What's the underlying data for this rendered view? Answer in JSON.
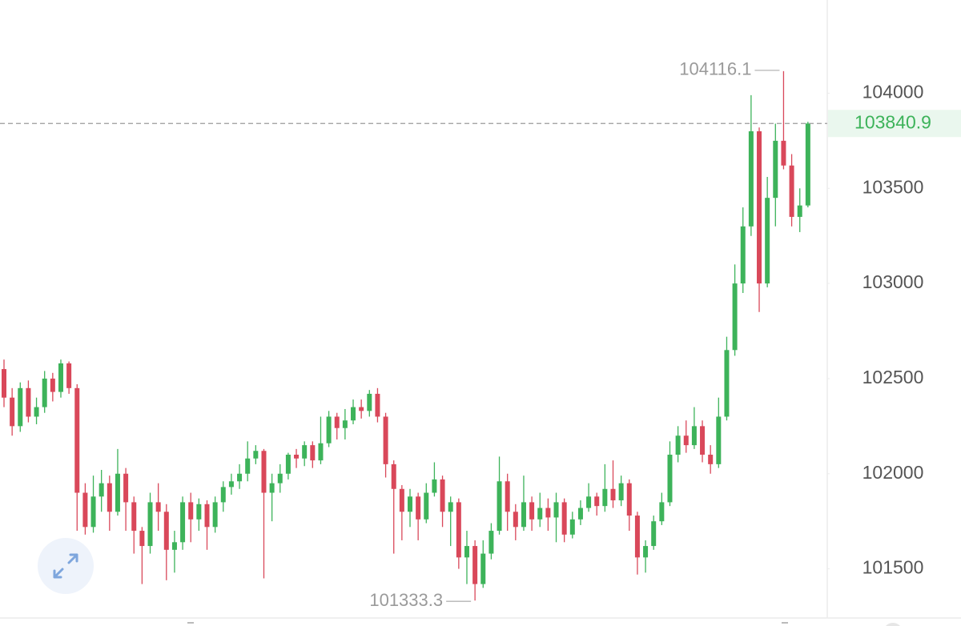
{
  "chart_data": {
    "type": "candlestick",
    "up_color": "#3db35a",
    "down_color": "#d9485a",
    "ylim": [
      101250,
      104490
    ],
    "yticks": [
      101500,
      102000,
      102500,
      103000,
      103500,
      104000
    ],
    "last_price": 103840.9,
    "high_annotation": 104116.1,
    "low_annotation": 101333.3,
    "open": [
      102550,
      102400,
      102250,
      102450,
      102300,
      102350,
      102500,
      102430,
      102580,
      102450,
      101900,
      101720,
      101880,
      101950,
      101800,
      102000,
      101850,
      101700,
      101620,
      101850,
      101800,
      101600,
      101640,
      101850,
      101760,
      101840,
      101720,
      101850,
      101930,
      101960,
      102000,
      102080,
      102120,
      101900,
      101950,
      102000,
      102100,
      102080,
      102150,
      102070,
      102160,
      102300,
      102240,
      102280,
      102350,
      102330,
      102420,
      102300,
      102050,
      101920,
      101800,
      101880,
      101760,
      101900,
      101970,
      101800,
      101850,
      101560,
      101620,
      101420,
      101580,
      101700,
      101960,
      101800,
      101720,
      101850,
      101760,
      101820,
      101770,
      101850,
      101680,
      101760,
      101820,
      101880,
      101830,
      101920,
      101860,
      101950,
      101780,
      101560,
      101620,
      101750,
      101850,
      102100,
      102200,
      102150,
      102250,
      102100,
      102050,
      102300,
      102650,
      103000,
      103300,
      103800,
      103000,
      103450,
      103750,
      103620,
      103350,
      103410
    ],
    "high": [
      102600,
      102450,
      102480,
      102490,
      102400,
      102540,
      102530,
      102600,
      102590,
      102470,
      101950,
      101990,
      102020,
      101990,
      102130,
      102030,
      101880,
      101720,
      101900,
      101950,
      101840,
      101700,
      101880,
      101900,
      101870,
      101860,
      101880,
      101960,
      102000,
      102050,
      102170,
      102150,
      102130,
      102000,
      102050,
      102110,
      102130,
      102170,
      102170,
      102300,
      102330,
      102320,
      102340,
      102390,
      102390,
      102440,
      102450,
      102320,
      102070,
      101940,
      101920,
      101900,
      101950,
      102060,
      101990,
      101880,
      101870,
      101700,
      101650,
      101650,
      101740,
      102090,
      102000,
      101840,
      101990,
      101880,
      101900,
      101870,
      101900,
      101870,
      101800,
      101860,
      101950,
      101900,
      102050,
      102070,
      101990,
      101970,
      101800,
      101650,
      101780,
      101900,
      102170,
      102250,
      102280,
      102350,
      102280,
      102150,
      102400,
      102720,
      103100,
      103400,
      103990,
      103820,
      103560,
      103840,
      104116.1,
      103680,
      103500,
      103850
    ],
    "low": [
      102350,
      102200,
      102220,
      102270,
      102260,
      102320,
      102380,
      102400,
      102420,
      101700,
      101680,
      101690,
      101800,
      101700,
      101780,
      101700,
      101580,
      101420,
      101580,
      101700,
      101440,
      101480,
      101600,
      101640,
      101700,
      101600,
      101690,
      101800,
      101890,
      101920,
      101960,
      102050,
      101450,
      101750,
      101900,
      101970,
      102030,
      102040,
      102030,
      102050,
      102140,
      102180,
      102180,
      102260,
      102290,
      102300,
      102270,
      101980,
      101580,
      101650,
      101720,
      101650,
      101740,
      101880,
      101720,
      101620,
      101500,
      101420,
      101333.3,
      101400,
      101550,
      101680,
      101700,
      101650,
      101700,
      101700,
      101720,
      101700,
      101640,
      101640,
      101660,
      101730,
      101800,
      101780,
      101800,
      101820,
      101830,
      101700,
      101470,
      101480,
      101600,
      101730,
      101830,
      102060,
      102110,
      102130,
      102060,
      102000,
      102030,
      102280,
      102620,
      102950,
      103250,
      102850,
      102980,
      103300,
      103600,
      103300,
      103270,
      103400
    ],
    "close": [
      102400,
      102250,
      102450,
      102300,
      102350,
      102500,
      102430,
      102580,
      102450,
      101900,
      101720,
      101880,
      101950,
      101800,
      102000,
      101850,
      101700,
      101620,
      101850,
      101800,
      101600,
      101640,
      101850,
      101760,
      101840,
      101720,
      101850,
      101930,
      101960,
      102000,
      102080,
      102120,
      101900,
      101950,
      102000,
      102100,
      102080,
      102150,
      102070,
      102160,
      102300,
      102240,
      102280,
      102350,
      102330,
      102420,
      102300,
      102050,
      101920,
      101800,
      101880,
      101760,
      101900,
      101970,
      101800,
      101850,
      101560,
      101620,
      101420,
      101580,
      101700,
      101960,
      101800,
      101720,
      101850,
      101760,
      101820,
      101770,
      101850,
      101680,
      101760,
      101820,
      101880,
      101830,
      101920,
      101860,
      101950,
      101780,
      101560,
      101620,
      101750,
      101850,
      102100,
      102200,
      102150,
      102250,
      102100,
      102050,
      102300,
      102650,
      103000,
      103300,
      103800,
      103000,
      103450,
      103750,
      103620,
      103350,
      103410,
      103840.9
    ]
  }
}
